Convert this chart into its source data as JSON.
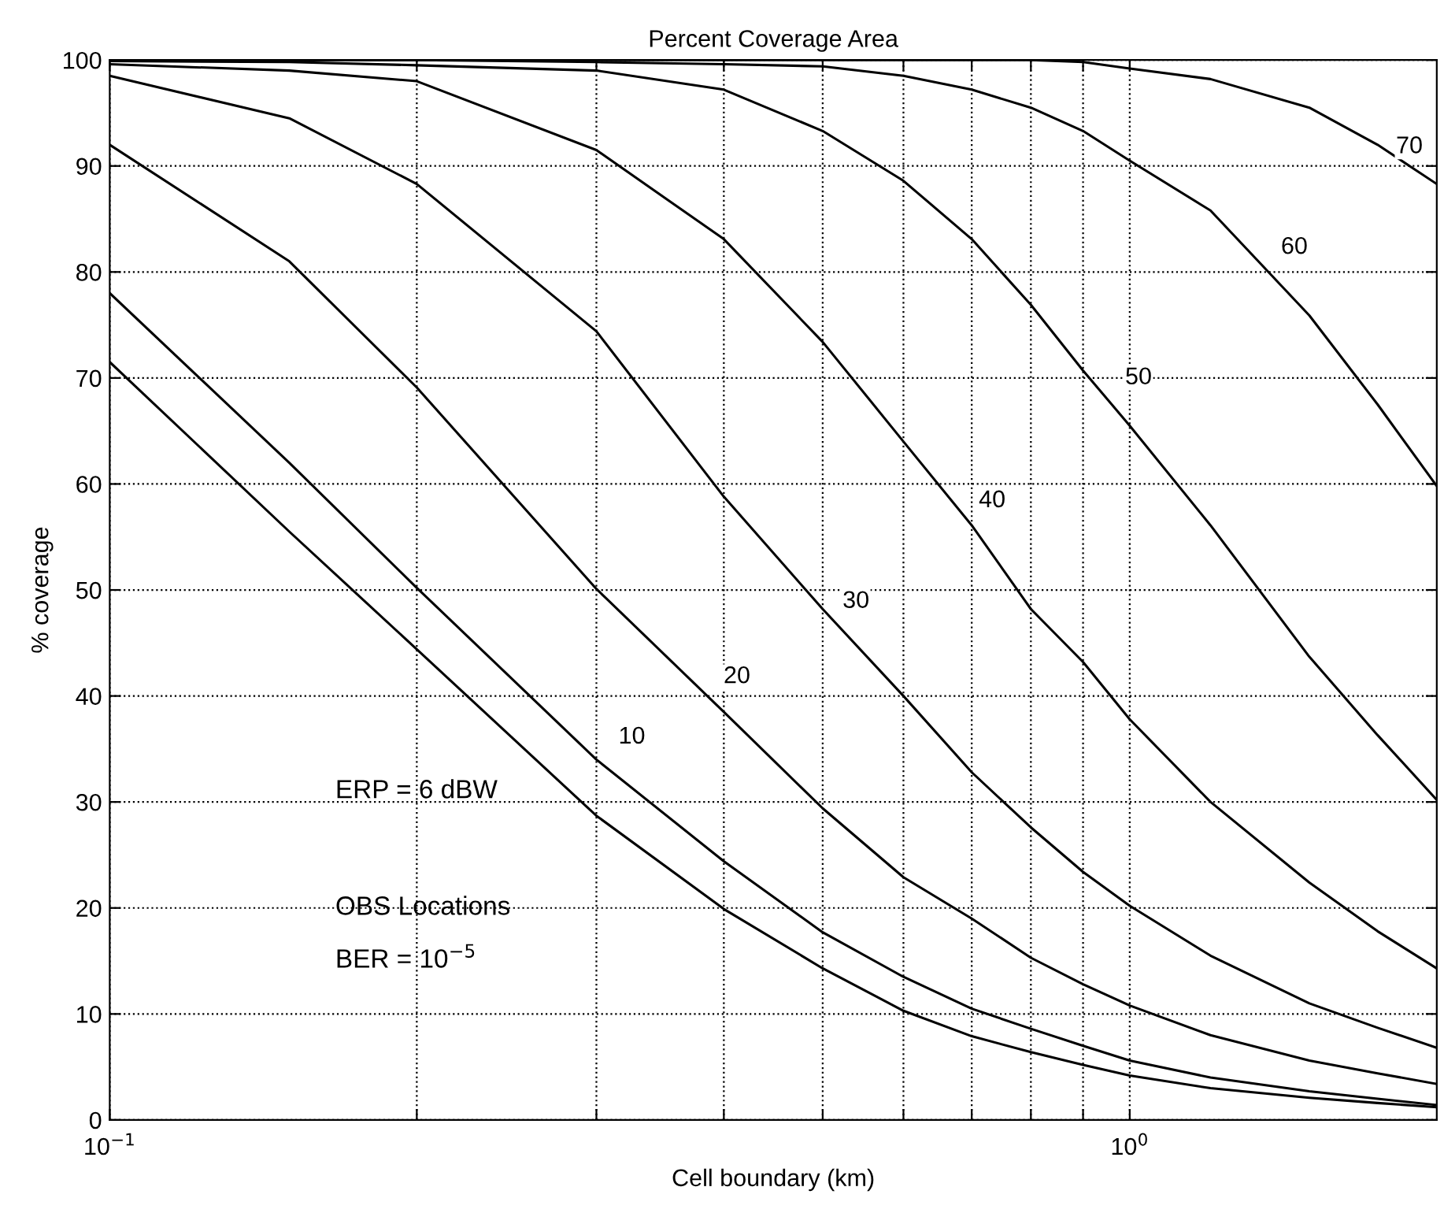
{
  "chart_data": {
    "type": "line",
    "title": "Percent Coverage Area",
    "xlabel": "Cell boundary (km)",
    "ylabel": "% coverage",
    "log": "x",
    "grid": true,
    "marker": "none",
    "line_style": "solid",
    "xlim": [
      0.1,
      2
    ],
    "ylim": [
      0,
      100
    ],
    "xticks": [
      {
        "value": 0.1,
        "label": "10$^{−1}$"
      },
      {
        "value": 0.2,
        "label": null
      },
      {
        "value": 0.3,
        "label": null
      },
      {
        "value": 0.4,
        "label": null
      },
      {
        "value": 0.5,
        "label": null
      },
      {
        "value": 0.6,
        "label": null
      },
      {
        "value": 0.7,
        "label": null
      },
      {
        "value": 0.8,
        "label": null
      },
      {
        "value": 0.9,
        "label": null
      },
      {
        "value": 1,
        "label": "10$^{0}$"
      }
    ],
    "yticks": [
      0,
      10,
      20,
      30,
      40,
      50,
      60,
      70,
      80,
      90,
      100
    ],
    "x": [
      0.1,
      0.15,
      0.2,
      0.3,
      0.4,
      0.5,
      0.6,
      0.7,
      0.8,
      0.9,
      1.0,
      1.2,
      1.5,
      1.75,
      2
    ],
    "series": [
      {
        "color": "#000000",
        "values": [
          71.5,
          55.5,
          44.4,
          28.7,
          19.9,
          14.3,
          10.3,
          7.9,
          6.4,
          5.2,
          4.2,
          3.0,
          2.1,
          1.6,
          1.2
        ]
      },
      {
        "color": "#000000",
        "values": [
          78,
          62,
          50.2,
          34.0,
          24.4,
          17.7,
          13.5,
          10.5,
          8.6,
          7.0,
          5.6,
          4.0,
          2.7,
          2.0,
          1.4
        ]
      },
      {
        "color": "#000000",
        "values": [
          92,
          81,
          69.1,
          50.1,
          38.5,
          29.4,
          22.9,
          19.0,
          15.3,
          12.8,
          10.8,
          8.0,
          5.6,
          4.4,
          3.4
        ]
      },
      {
        "color": "#000000",
        "values": [
          98.5,
          94.5,
          88.3,
          74.4,
          58.8,
          48.2,
          40.0,
          32.8,
          27.6,
          23.4,
          20.2,
          15.5,
          11.0,
          8.7,
          6.8
        ]
      },
      {
        "color": "#000000",
        "values": [
          99.6,
          99,
          98,
          91.5,
          83.1,
          73.4,
          64.0,
          56.1,
          48.2,
          43.2,
          37.8,
          30.0,
          22.4,
          17.8,
          14.3
        ]
      },
      {
        "color": "#000000",
        "values": [
          99.9,
          99.8,
          99.5,
          99.0,
          97.2,
          93.3,
          88.6,
          83.1,
          76.9,
          70.7,
          65.5,
          56.1,
          43.7,
          36.3,
          30.2
        ]
      },
      {
        "color": "#000000",
        "values": [
          100,
          100,
          100,
          99.8,
          99.6,
          99.4,
          98.5,
          97.2,
          95.5,
          93.3,
          90.5,
          85.8,
          75.9,
          67.5,
          59.8
        ]
      },
      {
        "color": "#000000",
        "values": [
          100,
          100,
          100,
          100,
          100,
          100,
          100,
          100,
          100,
          99.8,
          99.2,
          98.2,
          95.5,
          92.0,
          88.3
        ]
      }
    ],
    "annotations": [
      {
        "text": "10",
        "x": 0.325,
        "y": 36.1
      },
      {
        "text": "20",
        "x": 0.412,
        "y": 41.8
      },
      {
        "text": "30",
        "x": 0.539,
        "y": 48.9
      },
      {
        "text": "40",
        "x": 0.733,
        "y": 58.4
      },
      {
        "text": "50",
        "x": 1.02,
        "y": 70
      },
      {
        "text": "60",
        "x": 1.45,
        "y": 82.3
      },
      {
        "text": "70",
        "x": 1.88,
        "y": 91.8
      },
      "ERP = 6 dBW",
      "OBS Locations",
      "BER = 10$^{−5}$"
    ]
  }
}
